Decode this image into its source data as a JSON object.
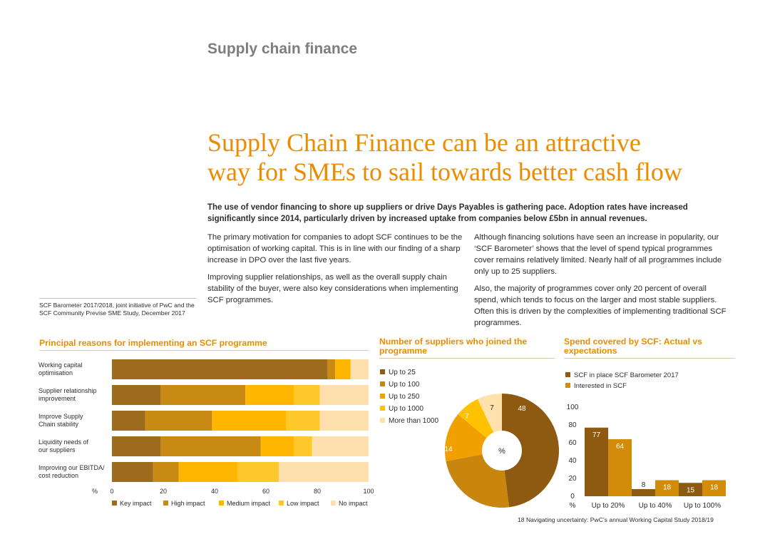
{
  "page": {
    "section_title": "Supply chain finance",
    "headline_line1": "Supply Chain Finance can be an attractive",
    "headline_line2": "way for SMEs to sail towards better cash flow",
    "intro": "The use of vendor financing to shore up suppliers or drive Days Payables is gathering pace. Adoption rates have increased significantly since 2014, particularly driven by increased uptake from companies below £5bn in annual revenues.",
    "left_col": [
      "The primary motivation for companies to adopt SCF continues to be the optimisation of working capital. This is in line with our finding of a sharp increase in DPO over the last five years.",
      "Improving supplier relationships, as well as the overall supply chain stability of the buyer, were also key considerations when implementing SCF programmes."
    ],
    "right_col": [
      "Although financing solutions have seen an increase in popularity, our ‘SCF Barometer’ shows that the level of spend typical programmes cover remains relatively limited. Nearly half of all programmes include only up to 25 suppliers.",
      "Also, the majority of programmes cover only 20 percent of overall spend, which tends to focus on the larger and most stable suppliers. Often this is driven by the complexities of implementing traditional SCF programmes."
    ],
    "sidenote": "SCF Barometer 2017/2018, joint initiative of PwC and the SCF Community Previse SME Study, December 2017",
    "footer": "18  Navigating uncertainty: PwC’s annual Working Capital Study 2018/19"
  },
  "colors": {
    "accent": "#eb8c00",
    "key": "#9c6b1c",
    "high": "#c88a12",
    "medium": "#ffb600",
    "low": "#ffc82a",
    "none": "#fde0ae",
    "pie_up25": "#8e5a12",
    "pie_up100": "#c8860e",
    "pie_up250": "#f0a000",
    "pie_up1000": "#ffc200",
    "pie_more1000": "#ffe1ab",
    "bar_place": "#8e5a12",
    "bar_interest": "#d38b0a"
  },
  "chart_data": [
    {
      "type": "bar",
      "orientation": "horizontal",
      "stacked": true,
      "title": "Principal reasons for implementing an SCF programme",
      "categories": [
        [
          "Working capital",
          "optimisation"
        ],
        [
          "Supplier relationship",
          "improvement"
        ],
        [
          "Improve Supply",
          "Chain stability"
        ],
        [
          "Liquidity needs of",
          "our suppliers"
        ],
        [
          "Improving our EBITDA/",
          "cost reduction"
        ]
      ],
      "series": [
        {
          "name": "Key impact",
          "values": [
            84,
            19,
            13,
            19,
            16
          ]
        },
        {
          "name": "High impact",
          "values": [
            3,
            33,
            26,
            39,
            10
          ]
        },
        {
          "name": "Medium impact",
          "values": [
            6,
            19,
            29,
            13,
            23
          ]
        },
        {
          "name": "Low impact",
          "values": [
            0,
            10,
            13,
            7,
            16
          ]
        },
        {
          "name": "No impact",
          "values": [
            7,
            19,
            19,
            22,
            35
          ]
        }
      ],
      "xlabel": "%",
      "xticks": [
        0,
        20,
        40,
        60,
        80,
        100
      ],
      "xlim": [
        0,
        100
      ],
      "legend": "bottom"
    },
    {
      "type": "pie",
      "donut": true,
      "title": "Number of suppliers who joined the programme",
      "center_label": "%",
      "slices": [
        {
          "name": "Up to 25",
          "value": 48
        },
        {
          "name": "Up to 100",
          "value": 24
        },
        {
          "name": "Up to 250",
          "value": 14
        },
        {
          "name": "Up to 1000",
          "value": 7
        },
        {
          "name": "More than 1000",
          "value": 7
        }
      ],
      "legend": "top-left"
    },
    {
      "type": "bar",
      "orientation": "vertical",
      "title": "Spend covered by SCF: Actual vs expectations",
      "categories": [
        "Up to 20%",
        "Up to 40%",
        "Up to 100%"
      ],
      "series": [
        {
          "name": "SCF in place SCF Barometer 2017",
          "values": [
            77,
            8,
            15
          ]
        },
        {
          "name": "Interested in SCF",
          "values": [
            64,
            18,
            18
          ]
        }
      ],
      "xlabel": "%",
      "yticks": [
        0,
        20,
        40,
        60,
        80,
        100
      ],
      "ylim": [
        0,
        100
      ],
      "legend": "top-left"
    }
  ]
}
